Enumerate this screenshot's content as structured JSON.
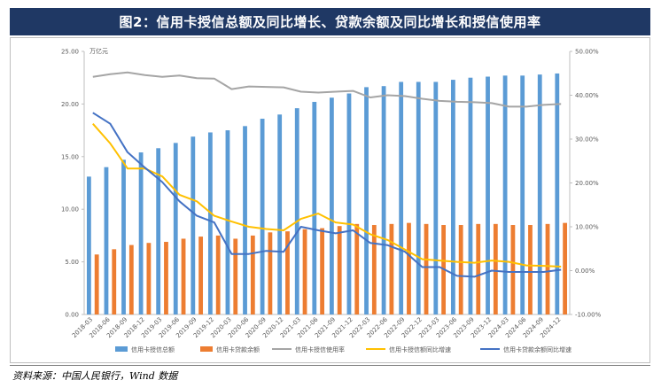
{
  "title": "图2：信用卡授信总额及同比增长、贷款余额及同比增长和授信使用率",
  "source": "资料来源：中国人民银行，Wind 数据",
  "chart_data": {
    "type": "bar",
    "unit_label": "万亿元",
    "categories": [
      "2018-03",
      "2018-06",
      "2018-09",
      "2018-12",
      "2019-03",
      "2019-06",
      "2019-09",
      "2019-12",
      "2020-03",
      "2020-06",
      "2020-09",
      "2020-12",
      "2021-03",
      "2021-06",
      "2021-09",
      "2021-12",
      "2022-03",
      "2022-06",
      "2022-09",
      "2022-12",
      "2023-03",
      "2023-06",
      "2023-09",
      "2023-12",
      "2024-03",
      "2024-06",
      "2024-09",
      "2024-12"
    ],
    "left_axis": {
      "min": 0,
      "max": 25,
      "ticks": [
        "0.00",
        "5.00",
        "10.00",
        "15.00",
        "20.00",
        "25.00"
      ]
    },
    "right_axis": {
      "min": -10,
      "max": 50,
      "ticks": [
        "-10.00%",
        "0.00%",
        "10.00%",
        "20.00%",
        "30.00%",
        "40.00%",
        "50.00%"
      ]
    },
    "series": [
      {
        "name": "信用卡授信总额",
        "kind": "bar",
        "axis": "left",
        "color": "#5b9bd5",
        "values": [
          13.1,
          14.0,
          14.7,
          15.4,
          15.8,
          16.3,
          16.9,
          17.3,
          17.5,
          17.9,
          18.6,
          19.0,
          19.6,
          20.2,
          20.6,
          21.0,
          21.6,
          21.7,
          22.1,
          22.1,
          22.1,
          22.3,
          22.5,
          22.6,
          22.7,
          22.7,
          22.8,
          22.9
        ]
      },
      {
        "name": "信用卡贷款余额",
        "kind": "bar",
        "axis": "left",
        "color": "#ed7d31",
        "values": [
          5.7,
          6.2,
          6.6,
          6.8,
          6.9,
          7.2,
          7.4,
          7.5,
          7.2,
          7.5,
          7.8,
          7.9,
          8.1,
          8.2,
          8.4,
          8.6,
          8.5,
          8.6,
          8.7,
          8.6,
          8.5,
          8.5,
          8.6,
          8.6,
          8.5,
          8.5,
          8.6,
          8.7
        ]
      },
      {
        "name": "信用卡授信使用率",
        "kind": "line",
        "axis": "right",
        "color": "#a5a5a5",
        "values": [
          44.2,
          44.8,
          45.2,
          44.6,
          44.2,
          44.5,
          43.9,
          43.8,
          41.4,
          42.0,
          41.9,
          41.8,
          40.8,
          40.6,
          40.8,
          41.0,
          39.5,
          40.0,
          39.8,
          39.2,
          38.7,
          38.5,
          38.4,
          38.2,
          37.4,
          37.4,
          37.8,
          38.0
        ]
      },
      {
        "name": "信用卡授信额同比增速",
        "kind": "line",
        "axis": "right",
        "color": "#ffc000",
        "values": [
          33.5,
          29.0,
          23.3,
          23.3,
          21.5,
          17.3,
          15.8,
          12.5,
          11.2,
          10.0,
          9.5,
          9.2,
          11.8,
          13.0,
          11.0,
          10.5,
          8.3,
          7.0,
          4.8,
          2.6,
          2.3,
          2.0,
          1.8,
          2.3,
          2.0,
          1.2,
          1.1,
          0.9
        ]
      },
      {
        "name": "信用卡贷款余额同比增速",
        "kind": "line",
        "axis": "right",
        "color": "#4472c4",
        "values": [
          36.0,
          33.5,
          27.0,
          23.5,
          20.2,
          15.8,
          12.5,
          11.0,
          3.8,
          3.8,
          4.5,
          4.3,
          10.0,
          9.2,
          8.5,
          9.2,
          6.3,
          5.8,
          4.3,
          0.8,
          0.8,
          -1.2,
          -1.4,
          0.0,
          -0.3,
          -0.3,
          -0.3,
          0.2
        ]
      }
    ],
    "legend_position": "bottom",
    "grid": false
  }
}
